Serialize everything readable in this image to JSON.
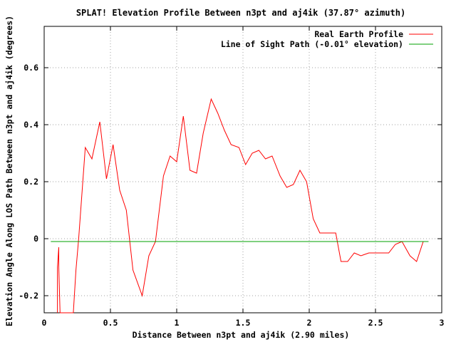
{
  "chart_data": {
    "type": "line",
    "title": "SPLAT! Elevation Profile Between n3pt and aj4ik (37.87° azimuth)",
    "xlabel": "Distance Between n3pt and aj4ik (2.90 miles)",
    "ylabel": "Elevation Angle Along LOS Path Between n3pt and aj4ik (degrees)",
    "xlim": [
      0,
      3
    ],
    "ylim": [
      -0.26,
      0.745
    ],
    "x_ticks": [
      0,
      0.5,
      1,
      1.5,
      2,
      2.5,
      3
    ],
    "x_tick_labels": [
      "0",
      "0.5",
      "1",
      "1.5",
      "2",
      "2.5",
      "3"
    ],
    "y_ticks": [
      -0.2,
      0,
      0.2,
      0.4,
      0.6
    ],
    "y_tick_labels": [
      "-0.2",
      "0",
      "0.2",
      "0.4",
      "0.6"
    ],
    "grid": true,
    "legend_position": "top-right",
    "series": [
      {
        "name": "Real Earth Profile",
        "color": "#ff0000",
        "x": [
          0.1,
          0.1,
          0.11,
          0.11,
          0.12,
          0.12,
          0.22,
          0.22,
          0.24,
          0.26,
          0.31,
          0.36,
          0.42,
          0.47,
          0.52,
          0.57,
          0.62,
          0.67,
          0.74,
          0.79,
          0.84,
          0.9,
          0.95,
          1.0,
          1.05,
          1.1,
          1.15,
          1.2,
          1.26,
          1.31,
          1.36,
          1.41,
          1.47,
          1.52,
          1.57,
          1.62,
          1.67,
          1.72,
          1.78,
          1.83,
          1.88,
          1.93,
          1.98,
          2.03,
          2.08,
          2.13,
          2.2,
          2.24,
          2.29,
          2.34,
          2.39,
          2.45,
          2.5,
          2.55,
          2.6,
          2.65,
          2.7,
          2.76,
          2.81,
          2.86,
          2.9
        ],
        "values": [
          -0.26,
          -0.1,
          -0.03,
          -0.1,
          -0.26,
          -0.26,
          -0.26,
          -0.26,
          -0.11,
          0.0,
          0.32,
          0.28,
          0.41,
          0.21,
          0.33,
          0.17,
          0.1,
          -0.11,
          -0.2,
          -0.06,
          -0.01,
          0.22,
          0.29,
          0.27,
          0.43,
          0.24,
          0.23,
          0.37,
          0.49,
          0.44,
          0.38,
          0.33,
          0.32,
          0.26,
          0.3,
          0.31,
          0.28,
          0.29,
          0.22,
          0.18,
          0.19,
          0.24,
          0.2,
          0.07,
          0.02,
          0.02,
          0.02,
          -0.08,
          -0.08,
          -0.05,
          -0.06,
          -0.05,
          -0.05,
          -0.05,
          -0.05,
          -0.02,
          -0.01,
          -0.06,
          -0.08,
          -0.01,
          -0.01
        ]
      },
      {
        "name": "Line of Sight Path (-0.01° elevation)",
        "color": "#00a000",
        "x": [
          0.05,
          2.9
        ],
        "values": [
          -0.01,
          -0.01
        ]
      }
    ]
  }
}
